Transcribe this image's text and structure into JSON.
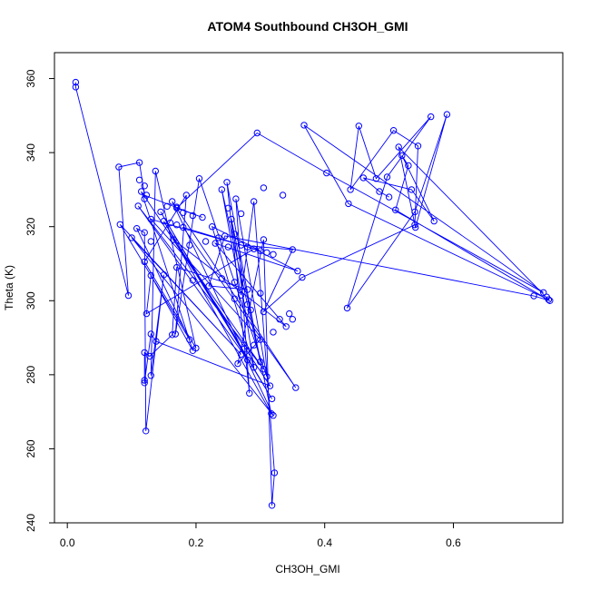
{
  "chart_data": {
    "type": "scatter",
    "title": "ATOM4 Southbound CH3OH_GMI",
    "xlabel": "CH3OH_GMI",
    "ylabel": "Theta (K)",
    "xlim": [
      -0.02,
      0.77
    ],
    "ylim": [
      240,
      367
    ],
    "xticks": [
      "0.0",
      "0.2",
      "0.4",
      "0.6"
    ],
    "xtick_values": [
      0.0,
      0.2,
      0.4,
      0.6
    ],
    "yticks": [
      "240",
      "260",
      "280",
      "300",
      "320",
      "340",
      "360"
    ],
    "ytick_values": [
      240,
      260,
      280,
      300,
      320,
      340,
      360
    ],
    "grid": false,
    "legend": "none",
    "series_color": "#0000FF",
    "marker": "open-circle-with-lines",
    "points": [
      [
        0.013,
        359.0
      ],
      [
        0.013,
        357.7
      ],
      [
        0.095,
        301.4
      ],
      [
        0.08,
        336.1
      ],
      [
        0.112,
        337.3
      ],
      [
        0.137,
        335.0
      ],
      [
        0.112,
        332.6
      ],
      [
        0.12,
        331.0
      ],
      [
        0.115,
        329.5
      ],
      [
        0.12,
        327.5
      ],
      [
        0.123,
        328.5
      ],
      [
        0.11,
        325.6
      ],
      [
        0.145,
        324.0
      ],
      [
        0.155,
        325.5
      ],
      [
        0.163,
        326.8
      ],
      [
        0.17,
        325.3
      ],
      [
        0.18,
        323.8
      ],
      [
        0.195,
        323.0
      ],
      [
        0.21,
        322.5
      ],
      [
        0.13,
        322.0
      ],
      [
        0.15,
        321.5
      ],
      [
        0.16,
        321.0
      ],
      [
        0.17,
        320.5
      ],
      [
        0.18,
        319.8
      ],
      [
        0.082,
        320.6
      ],
      [
        0.108,
        319.5
      ],
      [
        0.12,
        318.4
      ],
      [
        0.1,
        317.0
      ],
      [
        0.13,
        316.0
      ],
      [
        0.165,
        316.5
      ],
      [
        0.19,
        315.0
      ],
      [
        0.215,
        316.0
      ],
      [
        0.23,
        315.5
      ],
      [
        0.25,
        314.5
      ],
      [
        0.27,
        315.0
      ],
      [
        0.28,
        314.5
      ],
      [
        0.29,
        314.0
      ],
      [
        0.3,
        313.5
      ],
      [
        0.31,
        313.0
      ],
      [
        0.32,
        312.5
      ],
      [
        0.305,
        316.5
      ],
      [
        0.26,
        318.0
      ],
      [
        0.245,
        317.5
      ],
      [
        0.235,
        317.0
      ],
      [
        0.225,
        320.0
      ],
      [
        0.255,
        322.0
      ],
      [
        0.27,
        323.5
      ],
      [
        0.25,
        325.0
      ],
      [
        0.24,
        330.0
      ],
      [
        0.248,
        332.0
      ],
      [
        0.262,
        327.5
      ],
      [
        0.29,
        326.8
      ],
      [
        0.305,
        330.5
      ],
      [
        0.295,
        345.3
      ],
      [
        0.335,
        328.5
      ],
      [
        0.205,
        333.0
      ],
      [
        0.185,
        328.5
      ],
      [
        0.17,
        325.0
      ],
      [
        0.12,
        310.5
      ],
      [
        0.13,
        306.8
      ],
      [
        0.15,
        307.0
      ],
      [
        0.17,
        309.0
      ],
      [
        0.195,
        305.5
      ],
      [
        0.22,
        304.0
      ],
      [
        0.24,
        306.0
      ],
      [
        0.26,
        305.0
      ],
      [
        0.28,
        303.0
      ],
      [
        0.3,
        302.0
      ],
      [
        0.27,
        301.5
      ],
      [
        0.26,
        300.5
      ],
      [
        0.28,
        299.0
      ],
      [
        0.285,
        297.5
      ],
      [
        0.305,
        297.0
      ],
      [
        0.33,
        295.0
      ],
      [
        0.345,
        296.5
      ],
      [
        0.35,
        295.0
      ],
      [
        0.34,
        293.0
      ],
      [
        0.32,
        291.5
      ],
      [
        0.3,
        289.5
      ],
      [
        0.29,
        288.0
      ],
      [
        0.275,
        287.0
      ],
      [
        0.27,
        285.5
      ],
      [
        0.28,
        284.0
      ],
      [
        0.3,
        283.5
      ],
      [
        0.265,
        283.0
      ],
      [
        0.29,
        282.0
      ],
      [
        0.305,
        281.5
      ],
      [
        0.31,
        279.5
      ],
      [
        0.315,
        277.0
      ],
      [
        0.355,
        276.5
      ],
      [
        0.283,
        275.0
      ],
      [
        0.318,
        273.5
      ],
      [
        0.317,
        269.5
      ],
      [
        0.32,
        269.0
      ],
      [
        0.322,
        253.5
      ],
      [
        0.318,
        244.7
      ],
      [
        0.123,
        296.5
      ],
      [
        0.13,
        291.0
      ],
      [
        0.138,
        289.0
      ],
      [
        0.163,
        290.8
      ],
      [
        0.168,
        291.0
      ],
      [
        0.19,
        289.5
      ],
      [
        0.2,
        287.2
      ],
      [
        0.195,
        286.5
      ],
      [
        0.12,
        286.0
      ],
      [
        0.128,
        285.0
      ],
      [
        0.13,
        279.8
      ],
      [
        0.12,
        278.5
      ],
      [
        0.12,
        277.8
      ],
      [
        0.122,
        264.8
      ],
      [
        0.435,
        298.0
      ],
      [
        0.365,
        306.3
      ],
      [
        0.358,
        308.0
      ],
      [
        0.35,
        313.8
      ],
      [
        0.368,
        347.4
      ],
      [
        0.403,
        334.5
      ],
      [
        0.437,
        326.2
      ],
      [
        0.44,
        330.0
      ],
      [
        0.453,
        347.2
      ],
      [
        0.46,
        333.2
      ],
      [
        0.48,
        333.0
      ],
      [
        0.485,
        329.5
      ],
      [
        0.497,
        333.4
      ],
      [
        0.5,
        328.0
      ],
      [
        0.507,
        346.0
      ],
      [
        0.51,
        324.5
      ],
      [
        0.515,
        341.5
      ],
      [
        0.52,
        339.2
      ],
      [
        0.53,
        336.5
      ],
      [
        0.535,
        330.0
      ],
      [
        0.54,
        324.0
      ],
      [
        0.541,
        319.8
      ],
      [
        0.54,
        320.5
      ],
      [
        0.545,
        341.8
      ],
      [
        0.565,
        349.7
      ],
      [
        0.57,
        321.5
      ],
      [
        0.59,
        350.3
      ],
      [
        0.725,
        301.3
      ],
      [
        0.74,
        302.2
      ],
      [
        0.745,
        301.0
      ],
      [
        0.748,
        300.3
      ],
      [
        0.75,
        300.0
      ]
    ],
    "path": [
      [
        0.013,
        359.0
      ],
      [
        0.013,
        357.7
      ],
      [
        0.095,
        301.4
      ],
      [
        0.08,
        336.1
      ],
      [
        0.112,
        337.3
      ],
      [
        0.12,
        328.5
      ],
      [
        0.21,
        322.5
      ],
      [
        0.17,
        325.0
      ],
      [
        0.295,
        345.3
      ],
      [
        0.403,
        334.5
      ],
      [
        0.74,
        302.2
      ],
      [
        0.368,
        347.4
      ],
      [
        0.437,
        326.2
      ],
      [
        0.748,
        300.3
      ],
      [
        0.515,
        341.5
      ],
      [
        0.541,
        319.8
      ],
      [
        0.59,
        350.3
      ],
      [
        0.54,
        324.0
      ],
      [
        0.435,
        298.0
      ],
      [
        0.497,
        333.4
      ],
      [
        0.565,
        349.7
      ],
      [
        0.48,
        333.0
      ],
      [
        0.453,
        347.2
      ],
      [
        0.44,
        330.0
      ],
      [
        0.507,
        346.0
      ],
      [
        0.545,
        341.8
      ],
      [
        0.54,
        320.5
      ],
      [
        0.365,
        306.3
      ],
      [
        0.305,
        297.0
      ],
      [
        0.35,
        313.8
      ],
      [
        0.27,
        315.0
      ],
      [
        0.13,
        322.0
      ],
      [
        0.3,
        289.5
      ],
      [
        0.265,
        283.0
      ],
      [
        0.305,
        316.5
      ],
      [
        0.318,
        244.7
      ],
      [
        0.322,
        253.5
      ],
      [
        0.29,
        326.8
      ],
      [
        0.27,
        301.5
      ],
      [
        0.24,
        330.0
      ],
      [
        0.3,
        283.5
      ],
      [
        0.248,
        332.0
      ],
      [
        0.283,
        275.0
      ],
      [
        0.262,
        327.5
      ],
      [
        0.31,
        279.5
      ],
      [
        0.205,
        333.0
      ],
      [
        0.168,
        291.0
      ],
      [
        0.185,
        328.5
      ],
      [
        0.12,
        310.5
      ],
      [
        0.2,
        287.2
      ],
      [
        0.137,
        335.0
      ],
      [
        0.13,
        279.8
      ],
      [
        0.15,
        307.0
      ],
      [
        0.122,
        264.8
      ],
      [
        0.12,
        318.4
      ],
      [
        0.108,
        319.5
      ],
      [
        0.19,
        289.5
      ],
      [
        0.082,
        320.6
      ],
      [
        0.27,
        285.5
      ],
      [
        0.1,
        317.0
      ],
      [
        0.32,
        269.0
      ],
      [
        0.163,
        326.8
      ],
      [
        0.355,
        276.5
      ],
      [
        0.18,
        319.8
      ],
      [
        0.3,
        313.5
      ],
      [
        0.225,
        320.0
      ],
      [
        0.29,
        282.0
      ],
      [
        0.255,
        322.0
      ],
      [
        0.317,
        269.5
      ],
      [
        0.15,
        321.5
      ],
      [
        0.318,
        273.5
      ],
      [
        0.145,
        324.0
      ],
      [
        0.28,
        284.0
      ],
      [
        0.11,
        325.6
      ],
      [
        0.305,
        281.5
      ],
      [
        0.165,
        316.5
      ],
      [
        0.34,
        293.0
      ],
      [
        0.23,
        315.5
      ],
      [
        0.358,
        308.0
      ],
      [
        0.29,
        314.0
      ],
      [
        0.123,
        296.5
      ],
      [
        0.13,
        306.8
      ],
      [
        0.195,
        286.5
      ],
      [
        0.115,
        329.5
      ],
      [
        0.315,
        277.0
      ],
      [
        0.138,
        289.0
      ],
      [
        0.13,
        291.0
      ],
      [
        0.12,
        277.8
      ],
      [
        0.12,
        286.0
      ],
      [
        0.128,
        285.0
      ],
      [
        0.163,
        290.8
      ],
      [
        0.17,
        309.0
      ],
      [
        0.28,
        303.0
      ],
      [
        0.22,
        304.0
      ],
      [
        0.245,
        317.5
      ],
      [
        0.725,
        301.3
      ],
      [
        0.75,
        300.0
      ],
      [
        0.51,
        324.5
      ],
      [
        0.53,
        336.5
      ],
      [
        0.52,
        339.2
      ],
      [
        0.57,
        321.5
      ],
      [
        0.535,
        330.0
      ],
      [
        0.46,
        333.2
      ],
      [
        0.485,
        329.5
      ],
      [
        0.5,
        328.0
      ]
    ]
  }
}
